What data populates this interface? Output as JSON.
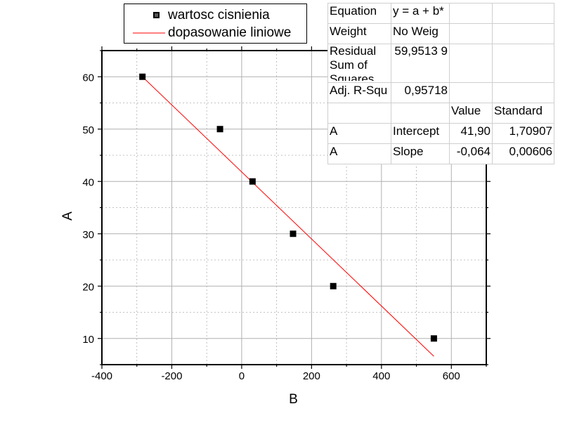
{
  "chart_data": {
    "type": "scatter",
    "xlabel": "B",
    "ylabel": "A",
    "xlim": [
      -400,
      700
    ],
    "ylim": [
      5,
      65
    ],
    "xticks": [
      -400,
      -200,
      0,
      200,
      400,
      600
    ],
    "yticks": [
      10,
      20,
      30,
      40,
      50,
      60
    ],
    "grid": true,
    "series": [
      {
        "name": "wartosc cisnienia",
        "type": "scatter",
        "x": [
          -284,
          -62,
          31,
          147,
          262,
          550
        ],
        "y": [
          60,
          50,
          40,
          30,
          20,
          10
        ]
      },
      {
        "name": "dopasowanie liniowe",
        "type": "line",
        "x": [
          -284,
          550
        ],
        "y": [
          60,
          6.6
        ]
      }
    ],
    "colors": {
      "points": "#000000",
      "fit_line": "#ff0000",
      "grid": "#b0b0b0"
    },
    "legend_position": "top-left"
  },
  "fit_table": {
    "rows": [
      [
        "Equation",
        "y = a + b*",
        "",
        ""
      ],
      [
        "Weight",
        "No Weig",
        "",
        ""
      ],
      [
        "Residual Sum of Squares",
        "59,9513 9",
        "",
        ""
      ],
      [
        "Adj. R-Squ",
        "0,95718",
        "",
        ""
      ],
      [
        "",
        "",
        "Value",
        "Standard"
      ],
      [
        "A",
        "Intercept",
        "41,90",
        "1,70907"
      ],
      [
        "A",
        "Slope",
        "-0,064",
        "0,00606"
      ]
    ]
  }
}
